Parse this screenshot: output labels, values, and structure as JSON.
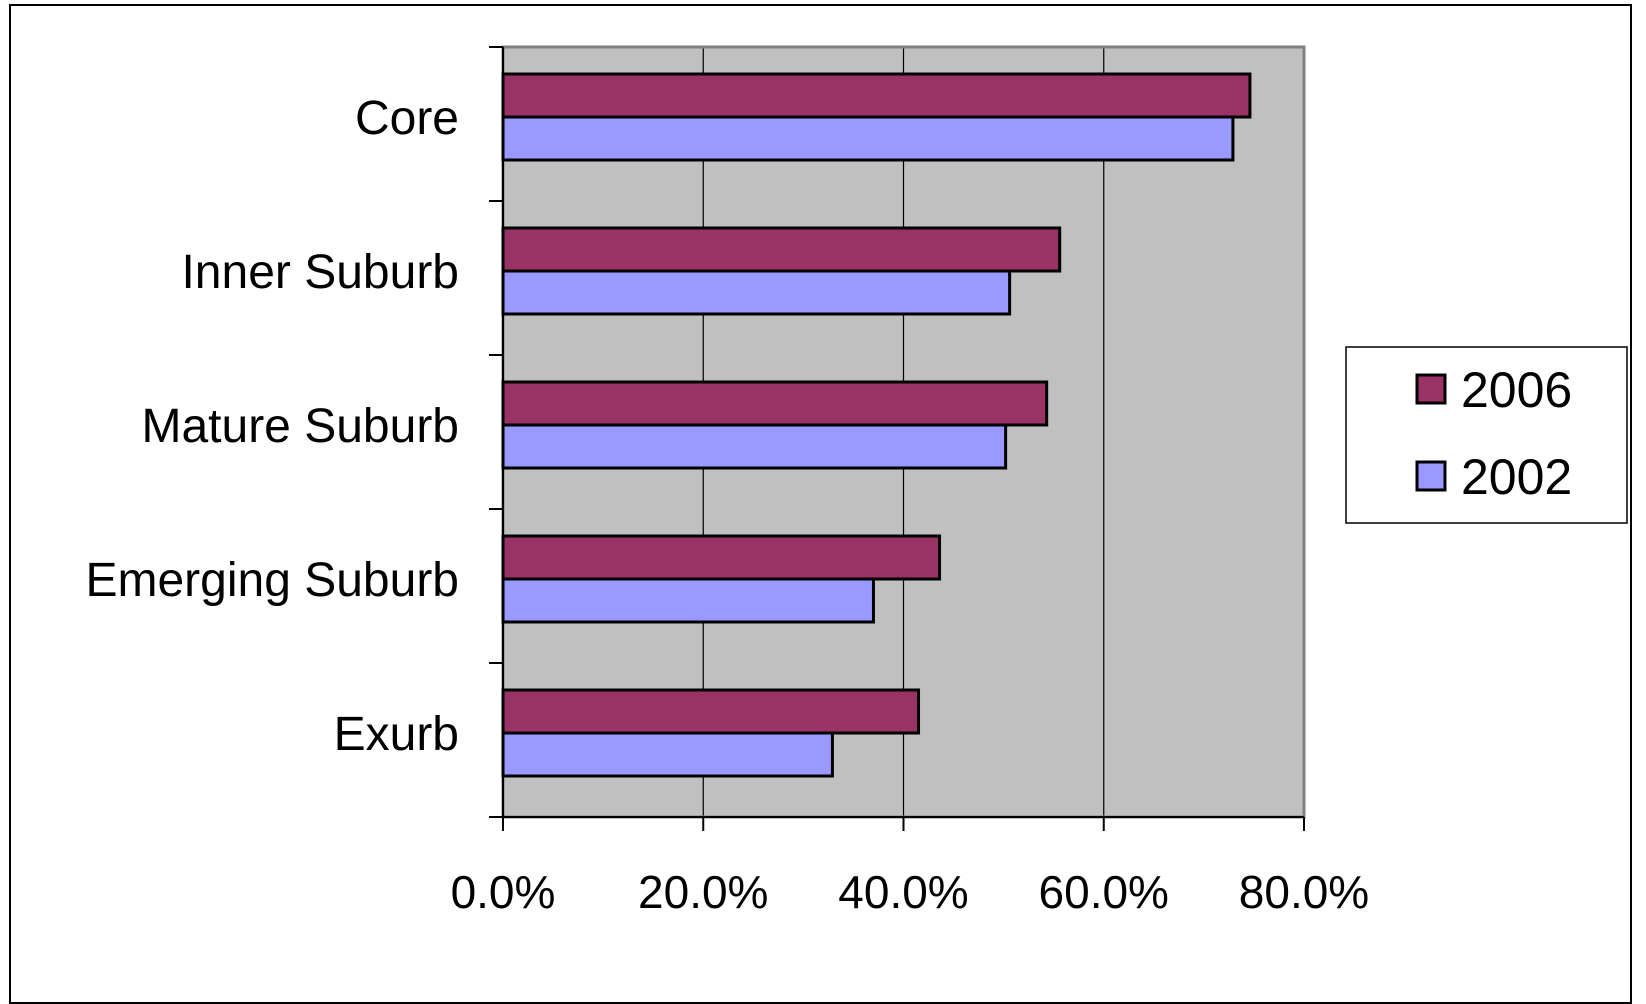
{
  "chart_data": {
    "type": "bar",
    "orientation": "horizontal",
    "categories": [
      "Core",
      "Inner Suburb",
      "Mature Suburb",
      "Emerging Suburb",
      "Exurb"
    ],
    "series": [
      {
        "name": "2006",
        "color": "#993366",
        "values": [
          74.6,
          55.6,
          54.3,
          43.6,
          41.5
        ]
      },
      {
        "name": "2002",
        "color": "#9999ff",
        "values": [
          72.9,
          50.6,
          50.2,
          37.0,
          32.9
        ]
      }
    ],
    "xlim": [
      0,
      80
    ],
    "x_ticks": [
      0,
      20,
      40,
      60,
      80
    ],
    "x_tick_labels": [
      "0.0%",
      "20.0%",
      "40.0%",
      "60.0%",
      "80.0%"
    ],
    "title": "",
    "xlabel": "",
    "ylabel": "",
    "grid": "vertical",
    "plot_background": "#c0c0c0",
    "legend_position": "right"
  }
}
